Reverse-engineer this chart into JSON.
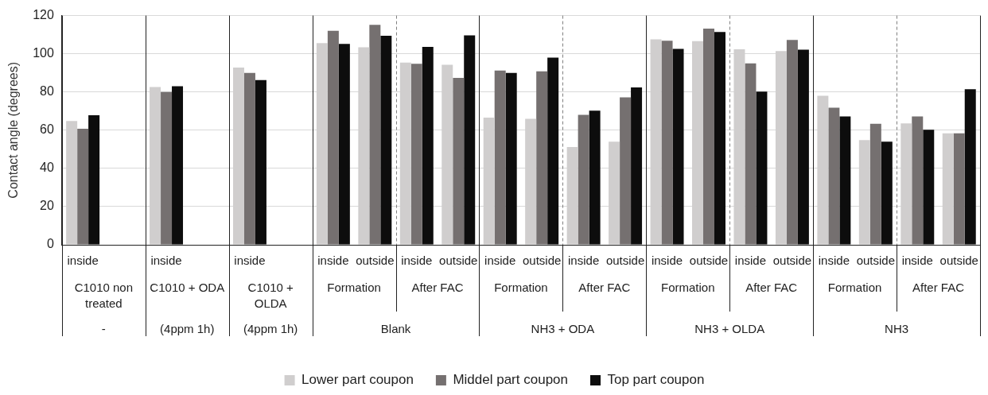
{
  "chart_data": {
    "type": "bar",
    "ylabel": "Contact angle (degrees)",
    "categories": [
      "inside",
      null,
      "inside",
      null,
      "inside",
      null,
      "inside",
      "outside",
      "inside",
      "outside",
      "inside",
      "outside",
      "inside",
      "outside",
      "inside",
      "outside",
      "inside",
      "outside",
      "inside",
      "outside",
      "inside",
      "outside"
    ],
    "series": [
      {
        "name": "Lower part coupon",
        "color": "#d0cece",
        "values": [
          64.8,
          null,
          82.6,
          null,
          92.8,
          null,
          105.6,
          103.4,
          95.4,
          94.2,
          66.6,
          66,
          51.2,
          54,
          107.6,
          106.6,
          102.4,
          101.4,
          78,
          54.8,
          63.6,
          58.4
        ]
      },
      {
        "name": "Middel part coupon",
        "color": "#757070",
        "values": [
          60.8,
          null,
          80,
          null,
          90,
          null,
          112,
          115.2,
          94.8,
          87.4,
          91.2,
          90.8,
          68,
          77.2,
          106.8,
          113.2,
          95,
          107.2,
          71.8,
          63.4,
          67.2,
          58.4
        ]
      },
      {
        "name": "Top part coupon",
        "color": "#0d0d0d",
        "values": [
          67.8,
          null,
          83,
          null,
          86.2,
          null,
          105.2,
          109.4,
          103.6,
          109.6,
          90,
          98,
          70.2,
          82.4,
          102.6,
          111.4,
          80.2,
          102.2,
          67.2,
          54,
          60.2,
          81.4
        ]
      }
    ],
    "ylim": [
      0,
      120
    ],
    "yticks": [
      0,
      20,
      40,
      60,
      80,
      100,
      120
    ],
    "grid": "y",
    "legend": "bottom",
    "annotations": [
      "C1010 non treated",
      "C1010 + ODA",
      "C1010 + OLDA",
      "Formation",
      "After FAC",
      "Formation",
      "After FAC",
      "Formation",
      "After FAC",
      "Formation",
      "After FAC",
      "-",
      "(4ppm 1h)",
      "(4ppm 1h)",
      "Blank",
      "NH3 + ODA",
      "NH3 + OLDA",
      "NH3"
    ]
  }
}
